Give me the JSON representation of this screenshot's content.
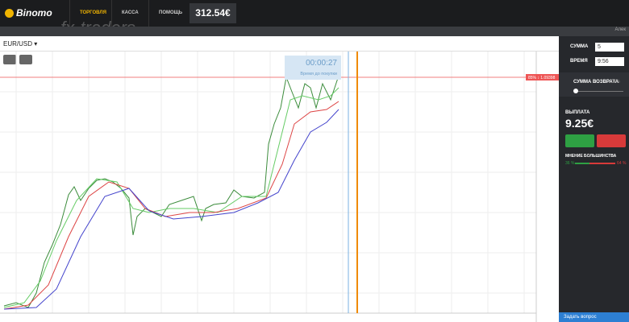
{
  "header": {
    "logo": "Binomo",
    "nav": [
      "ТОРГОВЛЯ",
      "КАССА",
      "ПОМОЩЬ"
    ],
    "balance": "312.54€",
    "watermark": "fx-traders",
    "user": "Алек"
  },
  "chart": {
    "asset": "EUR/USD",
    "timer": "00:00:27",
    "timer_label": "Время до покупки",
    "price_marker": "85% ↕ 1.09398"
  },
  "panel": {
    "amount_label": "СУММА",
    "amount": "5",
    "time_label": "ВРЕМЯ",
    "time": "9:56",
    "return_label": "СУММА ВОЗВРАТА",
    "return_value": "0%",
    "payout_label": "ВЫПЛАТА",
    "payout": "9.25€",
    "opinion_label": "МНЕНИЕ БОЛЬШИНСТВА",
    "opinion_up": "36 %",
    "opinion_down": "64 %",
    "help": "Задать вопрос"
  }
}
